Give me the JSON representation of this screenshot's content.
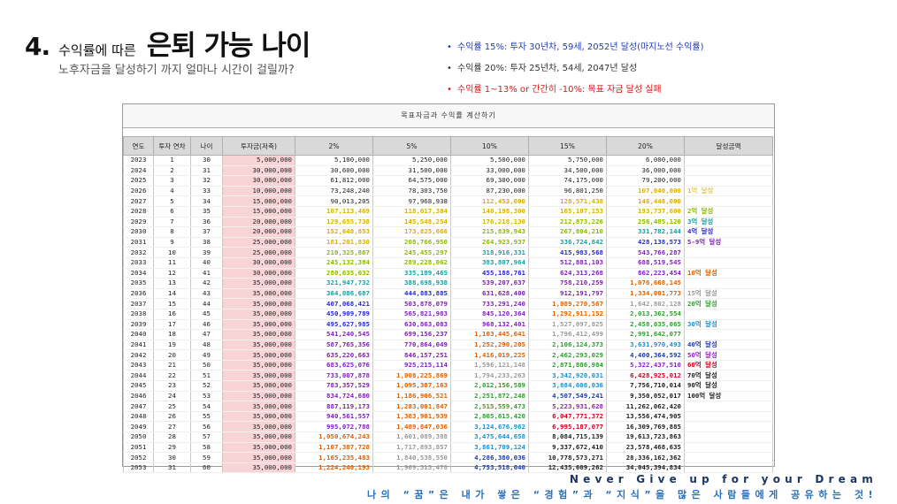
{
  "title": {
    "number": "4.",
    "small": "수익률에 따른",
    "big": "은퇴 가능 나이"
  },
  "subtitle": "노후자금을 달성하기 까지 얼마나 시간이 걸릴까?",
  "bullets": [
    {
      "text": "수익률 15%: 투자 30년차, 59세, 2052년 달성(마지노선 수익률)",
      "color": "#1f3bb3"
    },
    {
      "text": "수익률 20%: 투자 25년차, 54세, 2047년 달성",
      "color": "#333333"
    },
    {
      "text": "수익률 1~13% or 간간히 -10%: 목표 자금 달성 실패",
      "color": "#d11a1a"
    }
  ],
  "table": {
    "title": "목표자금과 수익률 계산하기",
    "headers": [
      "연도",
      "투자 연차",
      "나이",
      "투자금(저축)",
      "2%",
      "5%",
      "10%",
      "15%",
      "20%",
      "달성금액"
    ],
    "rows": [
      [
        "2023",
        "1",
        "30",
        "5,000,000",
        "5,100,000",
        "5,250,000",
        "5,500,000",
        "5,750,000",
        "6,000,000",
        ""
      ],
      [
        "2024",
        "2",
        "31",
        "30,000,000",
        "30,600,000",
        "31,500,000",
        "33,000,000",
        "34,500,000",
        "36,000,000",
        ""
      ],
      [
        "2025",
        "3",
        "32",
        "30,000,000",
        "61,812,000",
        "64,575,000",
        "69,300,000",
        "74,175,000",
        "79,200,000",
        ""
      ],
      [
        "2026",
        "4",
        "33",
        "10,000,000",
        "73,248,240",
        "78,303,750",
        "87,230,000",
        "96,801,250",
        "107,040,000",
        "1억 달성"
      ],
      [
        "2027",
        "5",
        "34",
        "15,000,000",
        "90,013,205",
        "97,968,938",
        "112,453,000",
        "128,571,438",
        "146,448,000",
        ""
      ],
      [
        "2028",
        "6",
        "35",
        "15,000,000",
        "107,113,469",
        "118,617,384",
        "140,198,300",
        "165,107,153",
        "193,737,600",
        "2억 달성"
      ],
      [
        "2029",
        "7",
        "36",
        "20,000,000",
        "129,655,738",
        "145,548,254",
        "176,218,130",
        "212,873,226",
        "256,485,120",
        "3억 달성"
      ],
      [
        "2030",
        "8",
        "37",
        "20,000,000",
        "152,648,853",
        "173,825,666",
        "215,839,943",
        "267,804,210",
        "331,782,144",
        "4억 달성"
      ],
      [
        "2031",
        "9",
        "38",
        "25,000,000",
        "181,201,830",
        "208,766,950",
        "264,923,937",
        "336,724,842",
        "428,138,573",
        "5-9억 달성"
      ],
      [
        "2032",
        "10",
        "39",
        "25,000,000",
        "210,325,867",
        "245,455,297",
        "318,916,331",
        "415,983,568",
        "543,766,287",
        ""
      ],
      [
        "2033",
        "11",
        "40",
        "30,000,000",
        "245,132,384",
        "289,228,062",
        "383,807,964",
        "512,881,103",
        "688,519,545",
        ""
      ],
      [
        "2034",
        "12",
        "41",
        "30,000,000",
        "280,635,032",
        "335,189,465",
        "455,188,761",
        "624,313,268",
        "862,223,454",
        "10억 달성"
      ],
      [
        "2035",
        "13",
        "42",
        "35,000,000",
        "321,947,732",
        "388,698,938",
        "539,207,637",
        "758,210,259",
        "1,076,668,145",
        ""
      ],
      [
        "2036",
        "14",
        "43",
        "35,000,000",
        "364,086,687",
        "444,883,885",
        "631,628,400",
        "912,191,797",
        "1,334,001,773",
        "15억 달성"
      ],
      [
        "2037",
        "15",
        "44",
        "35,000,000",
        "407,068,421",
        "503,878,079",
        "733,291,240",
        "1,089,270,567",
        "1,642,802,128",
        "20억 달성"
      ],
      [
        "2038",
        "16",
        "45",
        "35,000,000",
        "450,909,789",
        "565,821,983",
        "845,120,364",
        "1,292,911,152",
        "2,013,362,554",
        ""
      ],
      [
        "2039",
        "17",
        "46",
        "35,000,000",
        "495,627,985",
        "630,863,083",
        "968,132,401",
        "1,527,097,825",
        "2,458,035,065",
        "30억 달성"
      ],
      [
        "2040",
        "18",
        "47",
        "35,000,000",
        "541,240,545",
        "699,156,237",
        "1,103,445,641",
        "1,796,412,499",
        "2,991,642,077",
        ""
      ],
      [
        "2041",
        "19",
        "48",
        "35,000,000",
        "587,765,356",
        "770,864,049",
        "1,252,290,205",
        "2,106,124,373",
        "3,631,970,493",
        "40억 달성"
      ],
      [
        "2042",
        "20",
        "49",
        "35,000,000",
        "635,220,663",
        "846,157,251",
        "1,416,019,225",
        "2,462,293,029",
        "4,400,364,592",
        "50억 달성"
      ],
      [
        "2043",
        "21",
        "50",
        "35,000,000",
        "683,625,076",
        "925,215,114",
        "1,596,121,148",
        "2,871,886,984",
        "5,322,437,510",
        "60억 달성"
      ],
      [
        "2044",
        "22",
        "51",
        "35,000,000",
        "733,007,878",
        "1,008,225,869",
        "1,794,233,263",
        "3,342,920,031",
        "6,428,925,012",
        "70억 달성"
      ],
      [
        "2045",
        "23",
        "52",
        "35,000,000",
        "783,357,529",
        "1,095,387,163",
        "2,012,156,589",
        "3,884,608,036",
        "7,756,710,014",
        "90억 달성"
      ],
      [
        "2046",
        "24",
        "53",
        "35,000,000",
        "834,724,680",
        "1,186,906,521",
        "2,251,872,248",
        "4,507,549,241",
        "9,350,052,017",
        "100억 달성"
      ],
      [
        "2047",
        "25",
        "54",
        "35,000,000",
        "887,119,173",
        "1,283,001,847",
        "2,515,559,473",
        "5,223,931,628",
        "11,262,062,420",
        ""
      ],
      [
        "2048",
        "26",
        "55",
        "35,000,000",
        "940,561,557",
        "1,383,901,939",
        "2,805,615,420",
        "6,047,771,372",
        "13,556,474,905",
        ""
      ],
      [
        "2049",
        "27",
        "56",
        "35,000,000",
        "995,072,788",
        "1,489,847,036",
        "3,124,676,962",
        "6,995,187,077",
        "16,309,769,885",
        ""
      ],
      [
        "2050",
        "28",
        "57",
        "35,000,000",
        "1,050,674,243",
        "1,601,089,388",
        "3,475,644,658",
        "8,084,715,139",
        "19,613,723,863",
        ""
      ],
      [
        "2051",
        "29",
        "58",
        "35,000,000",
        "1,107,387,728",
        "1,717,893,857",
        "3,861,709,124",
        "9,337,672,410",
        "23,578,468,635",
        ""
      ],
      [
        "2052",
        "30",
        "59",
        "35,000,000",
        "1,165,235,483",
        "1,840,538,550",
        "4,286,380,036",
        "10,778,573,271",
        "28,336,162,362",
        ""
      ],
      [
        "2053",
        "31",
        "60",
        "35,000,000",
        "1,224,240,193",
        "1,969,315,478",
        "4,753,518,040",
        "12,435,609,262",
        "34,045,394,834",
        ""
      ]
    ]
  },
  "footer": {
    "line1": "Never Give up for your Dream",
    "line2": "나의 “꿈”은 내가 쌓은 “경험”과 “지식”을 많은 사람들에게 공유하는 것!"
  },
  "colors": {
    "bronze": "#a8a8a8",
    "1억": "#d8b000",
    "2억": "#8cb800",
    "3억": "#1a9e9e",
    "4억": "#2a2ad0",
    "5억": "#7d22b8",
    "10억": "#e06000",
    "15억": "#999999",
    "20억": "#2e9e2e",
    "30억": "#1b8fd0",
    "40억": "#1d3aa8",
    "50억": "#8e1fc4",
    "60억": "#d0021b",
    "70억": "#222222",
    "invest_bg": "#f9d4d6"
  }
}
